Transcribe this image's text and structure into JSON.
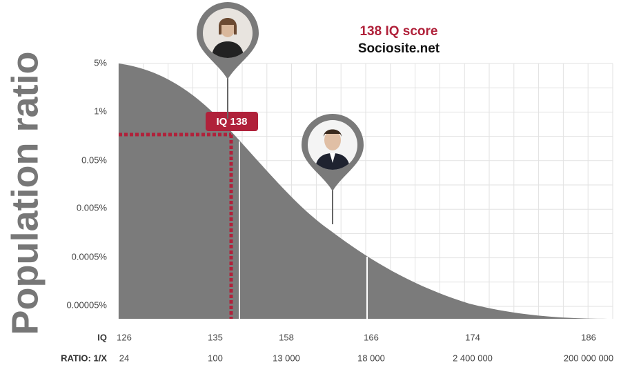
{
  "header": {
    "title": "138 IQ score",
    "source": "Sociosite.net"
  },
  "axis_title": "Population ratio",
  "y_labels": [
    "5%",
    "1%",
    "0.05%",
    "0.005%",
    "0.0005%",
    "0.00005%"
  ],
  "x_rows": [
    {
      "label": "IQ",
      "values": [
        "126",
        "135",
        "158",
        "166",
        "174",
        "186"
      ]
    },
    {
      "label": "RATIO: 1/X",
      "values": [
        "24",
        "100",
        "13 000",
        "18 000",
        "2 400 000",
        "200 000 000"
      ]
    }
  ],
  "marker": "IQ 138"
}
